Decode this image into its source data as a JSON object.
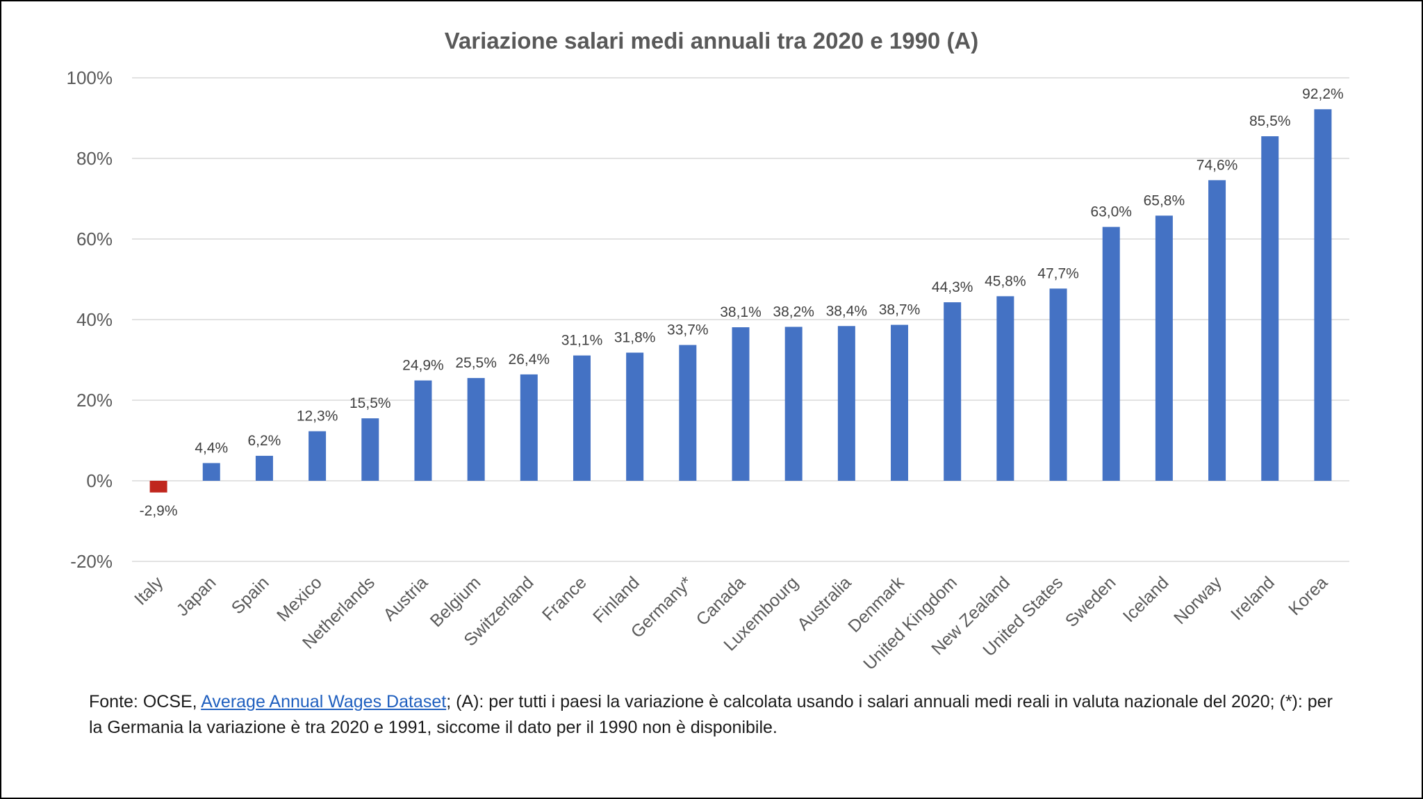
{
  "chart_data": {
    "type": "bar",
    "title": "Variazione salari medi annuali tra 2020 e 1990 (A)",
    "xlabel": "",
    "ylabel": "",
    "ylim": [
      -20,
      100
    ],
    "yticks": [
      -20,
      0,
      20,
      40,
      60,
      80,
      100
    ],
    "ytick_labels": [
      "-20%",
      "0%",
      "20%",
      "40%",
      "60%",
      "80%",
      "100%"
    ],
    "grid": true,
    "legend": "none",
    "categories": [
      "Italy",
      "Japan",
      "Spain",
      "Mexico",
      "Netherlands",
      "Austria",
      "Belgium",
      "Switzerland",
      "France",
      "Finland",
      "Germany*",
      "Canada",
      "Luxembourg",
      "Australia",
      "Denmark",
      "United Kingdom",
      "New Zealand",
      "United States",
      "Sweden",
      "Iceland",
      "Norway",
      "Ireland",
      "Korea"
    ],
    "values": [
      -2.9,
      4.4,
      6.2,
      12.3,
      15.5,
      24.9,
      25.5,
      26.4,
      31.1,
      31.8,
      33.7,
      38.1,
      38.2,
      38.4,
      38.7,
      44.3,
      45.8,
      47.7,
      63.0,
      65.8,
      74.6,
      85.5,
      92.2
    ],
    "data_labels": [
      "-2,9%",
      "4,4%",
      "6,2%",
      "12,3%",
      "15,5%",
      "24,9%",
      "25,5%",
      "26,4%",
      "31,1%",
      "31,8%",
      "33,7%",
      "38,1%",
      "38,2%",
      "38,4%",
      "38,7%",
      "44,3%",
      "45,8%",
      "47,7%",
      "63,0%",
      "65,8%",
      "74,6%",
      "85,5%",
      "92,2%"
    ],
    "colors": {
      "positive": "#4472c4",
      "negative": "#c0261d",
      "grid": "#d9d9d9",
      "axis_text": "#595959",
      "title": "#595959",
      "label": "#404040"
    }
  },
  "footnote": {
    "prefix": "Fonte: OCSE, ",
    "link_text": "Average Annual Wages Dataset",
    "suffix": "; (A): per tutti i paesi la variazione è calcolata usando i salari annuali medi reali in valuta nazionale del 2020; (*): per la Germania la variazione è tra 2020 e 1991, siccome il dato per il 1990 non è disponibile."
  }
}
